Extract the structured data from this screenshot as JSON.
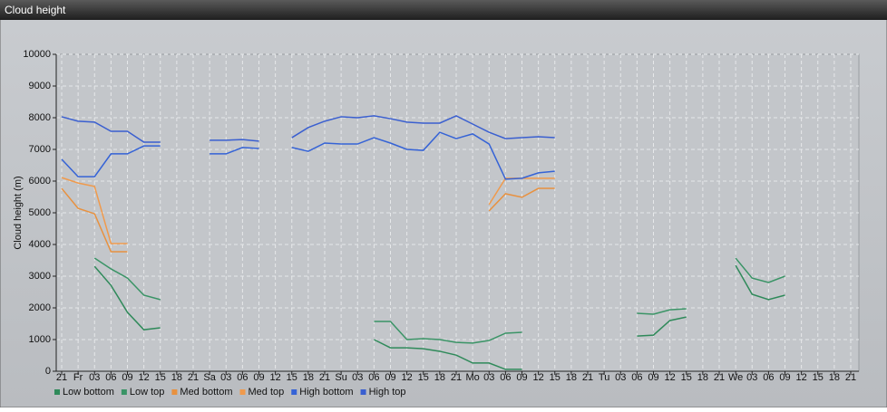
{
  "chart_data": {
    "type": "line",
    "title": "Cloud height",
    "y_label": "Cloud height (m)",
    "categories": [
      "21",
      "Fr",
      "03",
      "06",
      "09",
      "12",
      "15",
      "18",
      "21",
      "Sa",
      "03",
      "06",
      "09",
      "12",
      "15",
      "18",
      "21",
      "Su",
      "03",
      "06",
      "09",
      "12",
      "15",
      "18",
      "21",
      "Mo",
      "03",
      "06",
      "09",
      "12",
      "15",
      "18",
      "21",
      "Tu",
      "03",
      "06",
      "09",
      "12",
      "15",
      "18",
      "21",
      "We",
      "03",
      "06",
      "09",
      "12",
      "15",
      "18",
      "21"
    ],
    "ylim": [
      0,
      10000
    ],
    "yticks": [
      0,
      1000,
      2000,
      3000,
      4000,
      5000,
      6000,
      7000,
      8000,
      9000,
      10000
    ],
    "grid": true,
    "legend": "bottom-left",
    "series": [
      {
        "name": "Low bottom",
        "color": "#2f8a5a",
        "values": [
          null,
          null,
          3310,
          2710,
          1860,
          1310,
          1370,
          null,
          null,
          null,
          null,
          null,
          null,
          null,
          null,
          null,
          null,
          null,
          null,
          1000,
          740,
          740,
          710,
          630,
          510,
          260,
          260,
          60,
          60,
          null,
          null,
          null,
          null,
          null,
          null,
          1110,
          1140,
          1600,
          1710,
          null,
          null,
          3340,
          2430,
          2260,
          2400,
          null,
          null,
          null,
          null
        ]
      },
      {
        "name": "Low top",
        "color": "#3a9466",
        "values": [
          null,
          null,
          3570,
          3230,
          2940,
          2400,
          2260,
          null,
          null,
          null,
          null,
          null,
          null,
          null,
          null,
          null,
          null,
          null,
          null,
          1570,
          1570,
          1000,
          1030,
          1000,
          910,
          890,
          970,
          1200,
          1230,
          null,
          null,
          null,
          null,
          null,
          null,
          1830,
          1800,
          1940,
          1970,
          null,
          null,
          3570,
          2940,
          2800,
          3000,
          null,
          null,
          null,
          null
        ]
      },
      {
        "name": "Med bottom",
        "color": "#e8913f",
        "values": [
          5770,
          5140,
          4970,
          3770,
          3770,
          null,
          null,
          null,
          null,
          null,
          null,
          null,
          null,
          null,
          null,
          null,
          null,
          null,
          null,
          null,
          null,
          null,
          null,
          null,
          null,
          null,
          5060,
          5600,
          5490,
          5770,
          5770,
          null,
          null,
          null,
          null,
          null,
          null,
          null,
          null,
          null,
          null,
          null,
          null,
          null,
          null,
          null,
          null,
          null,
          null
        ]
      },
      {
        "name": "Med top",
        "color": "#f09a4c",
        "values": [
          6110,
          5940,
          5830,
          4030,
          4030,
          null,
          null,
          null,
          null,
          null,
          null,
          null,
          null,
          null,
          null,
          null,
          null,
          null,
          null,
          null,
          null,
          null,
          null,
          null,
          null,
          null,
          5260,
          6090,
          6090,
          6090,
          6090,
          null,
          null,
          null,
          null,
          null,
          null,
          null,
          null,
          null,
          null,
          null,
          null,
          null,
          null,
          null,
          null,
          null,
          null
        ]
      },
      {
        "name": "High bottom",
        "color": "#3563d6",
        "values": [
          6690,
          6140,
          6140,
          6860,
          6860,
          7110,
          7110,
          null,
          null,
          6860,
          6860,
          7060,
          7030,
          null,
          7060,
          6940,
          7200,
          7170,
          7170,
          7370,
          7200,
          7000,
          6970,
          7540,
          7340,
          7490,
          7170,
          6060,
          6090,
          6260,
          6310,
          null,
          null,
          null,
          null,
          null,
          null,
          null,
          null,
          null,
          null,
          null,
          null,
          null,
          null,
          null,
          null,
          null,
          null
        ]
      },
      {
        "name": "High top",
        "color": "#3a5fd0",
        "values": [
          8030,
          7890,
          7860,
          7570,
          7570,
          7230,
          7230,
          null,
          null,
          7290,
          7290,
          7310,
          7260,
          null,
          7370,
          7690,
          7890,
          8030,
          8000,
          8060,
          7970,
          7860,
          7830,
          7830,
          8060,
          7800,
          7540,
          7340,
          7370,
          7400,
          7370,
          null,
          null,
          null,
          null,
          null,
          null,
          null,
          null,
          null,
          null,
          null,
          null,
          null,
          null,
          null,
          null,
          null,
          null
        ]
      }
    ]
  }
}
